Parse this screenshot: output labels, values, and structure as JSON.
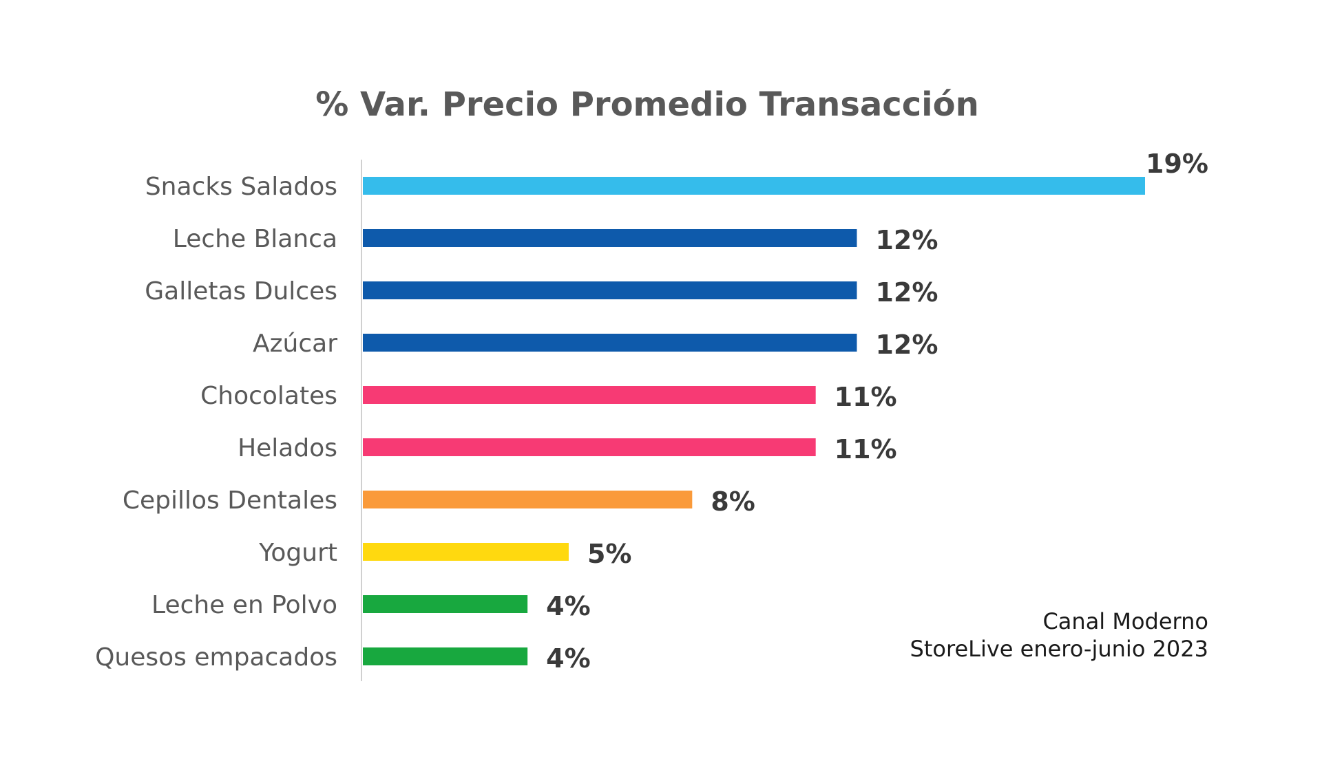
{
  "chart_data": {
    "type": "bar",
    "orientation": "horizontal",
    "title": "% Var. Precio Promedio Transacción",
    "categories": [
      "Snacks Salados",
      "Leche Blanca",
      "Galletas Dulces",
      "Azúcar",
      "Chocolates",
      "Helados",
      "Cepillos Dentales",
      "Yogurt",
      "Leche en Polvo",
      "Quesos empacados"
    ],
    "values": [
      19,
      12,
      12,
      12,
      11,
      11,
      8,
      5,
      4,
      4
    ],
    "value_labels": [
      "19%",
      "12%",
      "12%",
      "12%",
      "11%",
      "11%",
      "8%",
      "5%",
      "4%",
      "4%"
    ],
    "colors": [
      "#35BCEB",
      "#0E5AAB",
      "#0E5AAB",
      "#0E5AAB",
      "#F73A74",
      "#F73A74",
      "#FA9A3A",
      "#FFD90F",
      "#18A83F",
      "#18A83F"
    ],
    "xlim": [
      0,
      19
    ],
    "xlabel": "",
    "ylabel": "",
    "grid": false
  },
  "notes": {
    "line1": "Canal Moderno",
    "line2": "StoreLive enero-junio 2023"
  }
}
